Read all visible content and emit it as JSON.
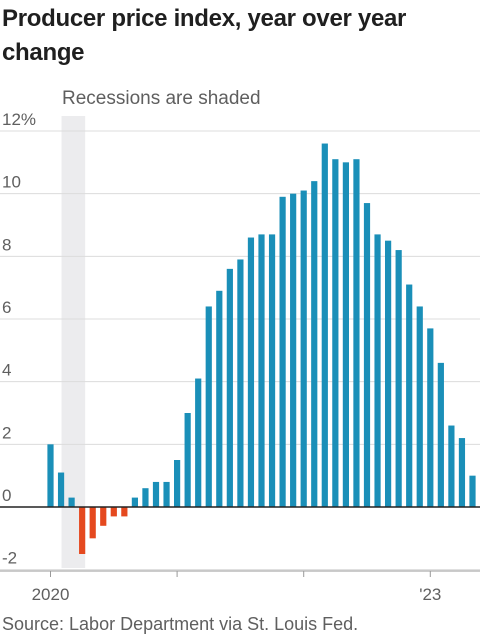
{
  "title": "Producer price index, year over year change",
  "note": "Recessions are shaded",
  "source": "Source: Labor Department via St. Louis Fed.",
  "colors": {
    "positive": "#1a8fb8",
    "negative": "#e5491f",
    "recession": "#ececee",
    "grid": "#dcdcdc",
    "zero": "#222222"
  },
  "chart_data": {
    "type": "bar",
    "title": "Producer price index, year over year change",
    "xlabel": "",
    "ylabel": "",
    "ylim": [
      -2,
      12
    ],
    "yticks": [
      "12%",
      "10",
      "8",
      "6",
      "4",
      "2",
      "0",
      "-2"
    ],
    "ytick_values": [
      12,
      10,
      8,
      6,
      4,
      2,
      0,
      -2
    ],
    "xtick_labels": [
      {
        "label": "2020",
        "index": 0
      },
      {
        "label": "'23",
        "index": 36
      }
    ],
    "recession": {
      "start_index": 1,
      "end_index": 3,
      "label": "Recessions are shaded"
    },
    "start_month": "2020-01",
    "values": [
      2.0,
      1.1,
      0.3,
      -1.5,
      -1.0,
      -0.6,
      -0.3,
      -0.3,
      0.3,
      0.6,
      0.8,
      0.8,
      1.5,
      3.0,
      4.1,
      6.4,
      6.9,
      7.6,
      7.9,
      8.6,
      8.7,
      8.7,
      9.9,
      10.0,
      10.1,
      10.4,
      11.6,
      11.1,
      11.0,
      11.1,
      9.7,
      8.7,
      8.5,
      8.2,
      7.1,
      6.4,
      5.7,
      4.6,
      2.6,
      2.2,
      1.0
    ]
  }
}
